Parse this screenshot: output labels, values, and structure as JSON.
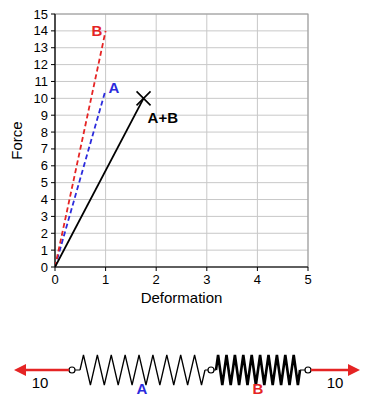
{
  "chart_data": {
    "type": "line",
    "xlabel": "Deformation",
    "ylabel": "Force",
    "xlim": [
      0,
      5
    ],
    "ylim": [
      0,
      15
    ],
    "xticks": [
      0,
      1,
      2,
      3,
      4,
      5
    ],
    "yticks": [
      0,
      1,
      2,
      3,
      4,
      5,
      6,
      7,
      8,
      9,
      10,
      11,
      12,
      13,
      14,
      15
    ],
    "grid": true,
    "series": [
      {
        "name": "A",
        "color": "#2b2bdc",
        "line_style": "dashed",
        "x": [
          0,
          1
        ],
        "values": [
          0,
          10.5
        ]
      },
      {
        "name": "B",
        "color": "#e52424",
        "line_style": "dashed",
        "x": [
          0,
          1
        ],
        "values": [
          0,
          14
        ]
      },
      {
        "name": "A+B",
        "color": "#000000",
        "line_style": "solid",
        "marker": "x",
        "x": [
          0,
          1.75
        ],
        "values": [
          0,
          10
        ]
      }
    ]
  },
  "diagram": {
    "springs": [
      {
        "label": "A",
        "color": "#2b2bdc"
      },
      {
        "label": "B",
        "color": "#e52424"
      }
    ],
    "forces": [
      10,
      10
    ],
    "force_color": "#e52424"
  }
}
